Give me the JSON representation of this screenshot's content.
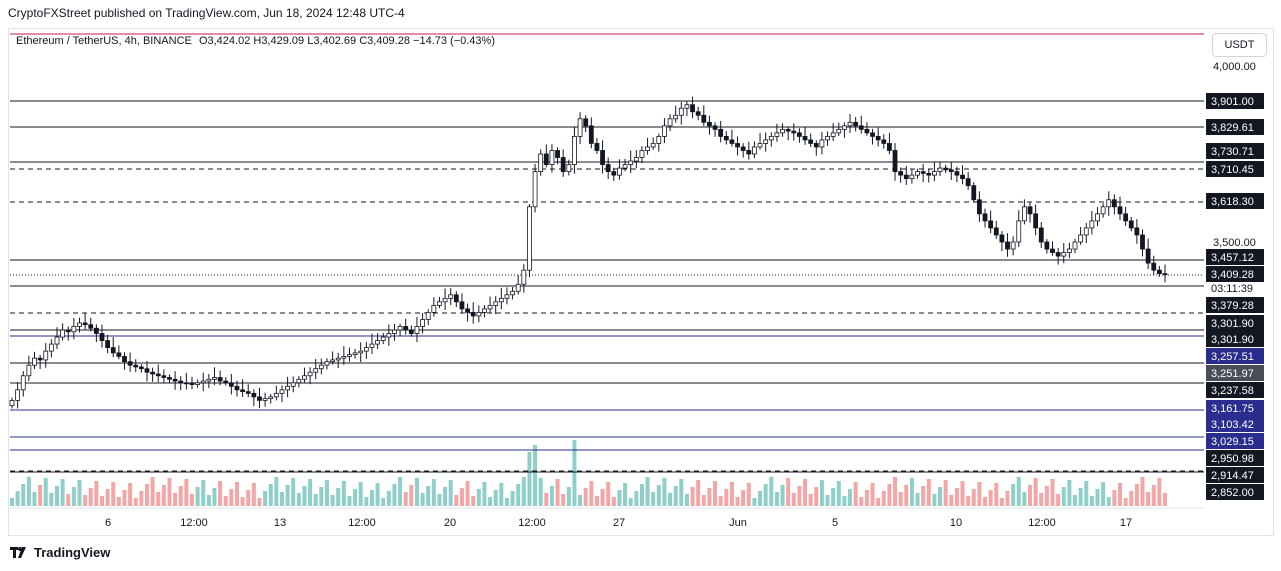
{
  "header": {
    "published_line": "CryptoFXStreet published on TradingView.com, Jun 18, 2024 12:48 UTC-4"
  },
  "legend": {
    "symbol": "Ethereum / TetherUS, 4h, BINANCE",
    "open": "O3,424.02",
    "high": "H3,429.09",
    "low": "L3,402.69",
    "close": "C3,409.28",
    "change": "−14.73 (−0.43%)"
  },
  "currency_button": "USDT",
  "countdown": "03:11:39",
  "footer": {
    "brand": "TradingView"
  },
  "colors": {
    "candle": "#131722",
    "volume_up": "#8ecfc9",
    "volume_down": "#f4a6a6",
    "blue_line": "#2b2d8e",
    "label_dark": "#131722",
    "label_blue": "#2b2d8e",
    "top_red_line": "#c2185b"
  },
  "chart_data": {
    "type": "candlestick",
    "symbol": "ETH/USDT",
    "interval": "4h",
    "y_axis_ticks": [
      "4,000.00",
      "3,500.00"
    ],
    "x_axis_ticks": [
      "6",
      "12:00",
      "13",
      "12:00",
      "20",
      "12:00",
      "27",
      "Jun",
      "5",
      "10",
      "12:00",
      "17"
    ],
    "price_labels": [
      {
        "text": "3,901.00",
        "style": "dark",
        "line": "solid"
      },
      {
        "text": "3,829.61",
        "style": "dark",
        "line": "solid"
      },
      {
        "text": "3,730.71",
        "style": "dark",
        "line": "solid"
      },
      {
        "text": "3,710.45",
        "style": "dark",
        "line": "dashed"
      },
      {
        "text": "3,618.30",
        "style": "dark",
        "line": "dashed"
      },
      {
        "text": "3,457.12",
        "style": "dark",
        "line": "solid"
      },
      {
        "text": "3,409.28",
        "style": "dark",
        "line": "dotted"
      },
      {
        "text": "3,379.28",
        "style": "dark",
        "line": "solid"
      },
      {
        "text": "3,301.90",
        "style": "dark",
        "line": "dashed"
      },
      {
        "text": "3,301.90",
        "style": "dark",
        "line": "solid"
      },
      {
        "text": "3,257.51",
        "style": "blue",
        "line": "solid"
      },
      {
        "text": "3,251.97",
        "style": "gray",
        "line": "solid"
      },
      {
        "text": "3,237.58",
        "style": "dark",
        "line": "solid"
      },
      {
        "text": "3,161.75",
        "style": "blue",
        "line": "solid"
      },
      {
        "text": "3,103.42",
        "style": "blue",
        "line": "solid"
      },
      {
        "text": "3,029.15",
        "style": "blue",
        "line": "solid"
      },
      {
        "text": "2,950.98",
        "style": "dark",
        "line": "dashed"
      },
      {
        "text": "2,914.47",
        "style": "dark",
        "line": "dashed"
      },
      {
        "text": "2,852.00",
        "style": "dark",
        "line": "solid"
      }
    ],
    "closes": [
      3050,
      3080,
      3120,
      3150,
      3170,
      3165,
      3190,
      3210,
      3230,
      3250,
      3245,
      3260,
      3270,
      3265,
      3255,
      3240,
      3220,
      3200,
      3185,
      3175,
      3160,
      3150,
      3145,
      3140,
      3130,
      3125,
      3120,
      3115,
      3110,
      3105,
      3100,
      3098,
      3095,
      3100,
      3105,
      3110,
      3115,
      3105,
      3100,
      3090,
      3080,
      3075,
      3070,
      3060,
      3050,
      3055,
      3060,
      3070,
      3080,
      3090,
      3100,
      3110,
      3120,
      3130,
      3140,
      3150,
      3160,
      3165,
      3170,
      3175,
      3180,
      3185,
      3190,
      3200,
      3210,
      3220,
      3230,
      3240,
      3250,
      3260,
      3250,
      3240,
      3260,
      3280,
      3300,
      3320,
      3330,
      3340,
      3350,
      3330,
      3310,
      3300,
      3290,
      3300,
      3310,
      3320,
      3330,
      3340,
      3350,
      3360,
      3380,
      3420,
      3600,
      3700,
      3750,
      3720,
      3760,
      3740,
      3700,
      3720,
      3800,
      3850,
      3830,
      3780,
      3760,
      3720,
      3700,
      3690,
      3710,
      3720,
      3730,
      3740,
      3760,
      3770,
      3780,
      3800,
      3830,
      3850,
      3860,
      3880,
      3890,
      3870,
      3860,
      3840,
      3830,
      3820,
      3800,
      3790,
      3780,
      3770,
      3760,
      3750,
      3770,
      3780,
      3790,
      3800,
      3810,
      3820,
      3815,
      3810,
      3800,
      3790,
      3780,
      3770,
      3790,
      3800,
      3810,
      3820,
      3830,
      3840,
      3830,
      3820,
      3810,
      3800,
      3790,
      3780,
      3760,
      3700,
      3690,
      3680,
      3690,
      3700,
      3695,
      3690,
      3700,
      3710,
      3705,
      3700,
      3690,
      3680,
      3660,
      3620,
      3580,
      3560,
      3540,
      3520,
      3500,
      3480,
      3500,
      3560,
      3600,
      3580,
      3540,
      3500,
      3480,
      3470,
      3460,
      3470,
      3480,
      3500,
      3520,
      3540,
      3560,
      3580,
      3600,
      3620,
      3600,
      3580,
      3560,
      3540,
      3520,
      3480,
      3440,
      3420,
      3410,
      3409.28
    ],
    "volume_spike_label": "volume"
  }
}
